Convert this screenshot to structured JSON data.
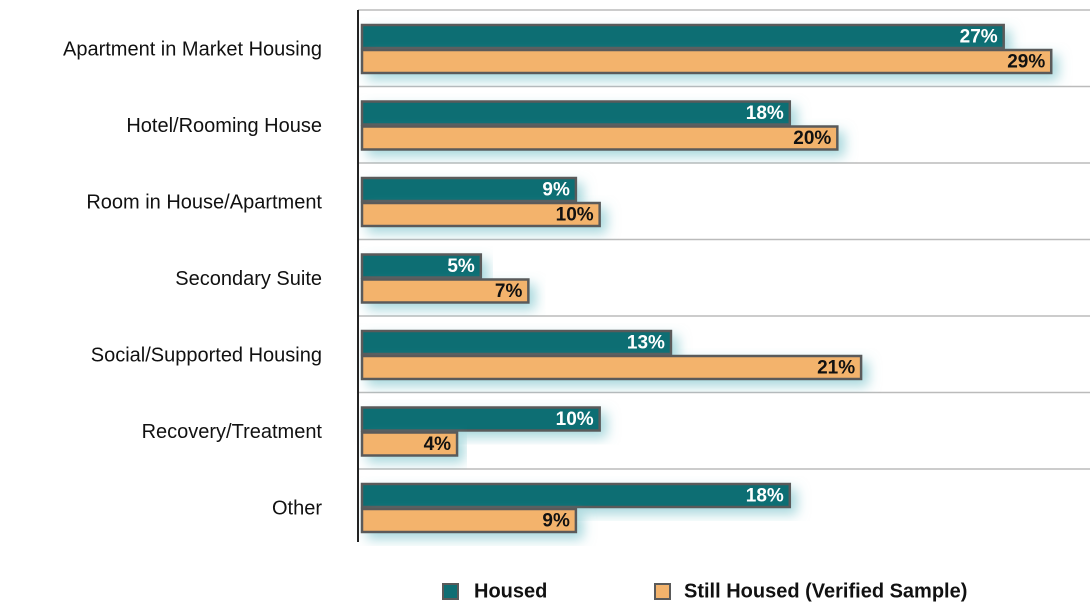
{
  "chart_data": {
    "type": "bar",
    "orientation": "horizontal",
    "categories": [
      "Apartment in Market Housing",
      "Hotel/Rooming House",
      "Room in House/Apartment",
      "Secondary Suite",
      "Social/Supported Housing",
      "Recovery/Treatment",
      "Other"
    ],
    "series": [
      {
        "name": "Housed",
        "color": "#0f6e73",
        "values": [
          27,
          18,
          9,
          5,
          13,
          10,
          18
        ],
        "value_labels": [
          "27%",
          "18%",
          "9%",
          "5%",
          "13%",
          "10%",
          "18%"
        ]
      },
      {
        "name": "Still Housed (Verified Sample)",
        "color": "#f3b36c",
        "values": [
          29,
          20,
          10,
          7,
          21,
          4,
          9
        ],
        "value_labels": [
          "29%",
          "20%",
          "10%",
          "7%",
          "21%",
          "4%",
          "9%"
        ]
      }
    ],
    "xlim": [
      0,
      30
    ],
    "grid": true,
    "legend": "bottom"
  }
}
